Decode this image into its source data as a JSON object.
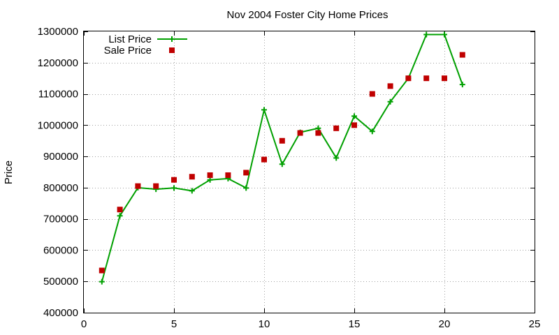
{
  "chart_data": {
    "type": "line",
    "title": "Nov 2004 Foster City Home Prices",
    "xlabel": "",
    "ylabel": "Price",
    "xlim": [
      0,
      25
    ],
    "ylim": [
      400000,
      1300000
    ],
    "x_ticks": [
      0,
      5,
      10,
      15,
      20,
      25
    ],
    "y_ticks": [
      400000,
      500000,
      600000,
      700000,
      800000,
      900000,
      1000000,
      1100000,
      1200000,
      1300000
    ],
    "grid": true,
    "legend_position": "top-left",
    "series": [
      {
        "name": "List Price",
        "style": "lines+points",
        "marker": "plus",
        "color": "#00a000",
        "x": [
          1,
          2,
          3,
          4,
          5,
          6,
          7,
          8,
          9,
          10,
          11,
          12,
          13,
          14,
          15,
          16,
          17,
          18,
          19,
          20,
          21
        ],
        "y": [
          499000,
          710000,
          800000,
          795000,
          799000,
          790000,
          825000,
          829000,
          799000,
          1049000,
          875000,
          977000,
          990000,
          895000,
          1029000,
          980000,
          1075000,
          1150000,
          1290000,
          1290000,
          1130000
        ]
      },
      {
        "name": "Sale Price",
        "style": "points",
        "marker": "square",
        "color": "#c00000",
        "x": [
          1,
          2,
          3,
          4,
          5,
          6,
          7,
          8,
          9,
          10,
          11,
          12,
          13,
          14,
          15,
          16,
          17,
          18,
          19,
          20,
          21
        ],
        "y": [
          535000,
          730000,
          805000,
          805000,
          825000,
          835000,
          840000,
          840000,
          848000,
          890000,
          950000,
          975000,
          975000,
          990000,
          1000000,
          1100000,
          1125000,
          1150000,
          1150000,
          1150000,
          1225000
        ]
      }
    ]
  }
}
